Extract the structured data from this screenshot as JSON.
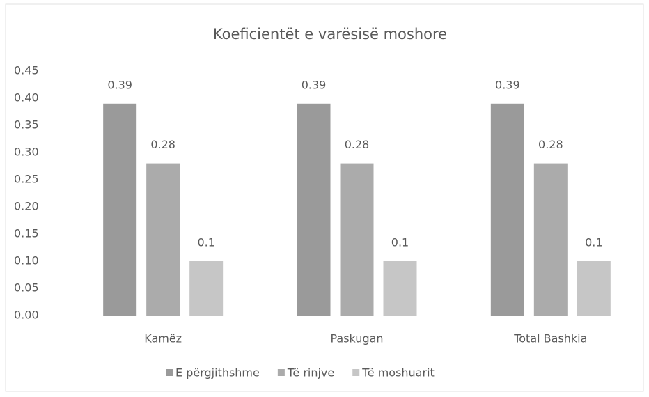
{
  "chart_data": {
    "type": "bar",
    "title": "Koeficientët e varësisë moshore",
    "categories": [
      "Kamëz",
      "Paskugan",
      "Total Bashkia"
    ],
    "series": [
      {
        "name": "E përgjithshme",
        "color": "#9a9a9a",
        "values": [
          0.39,
          0.39,
          0.39
        ]
      },
      {
        "name": "Të rinjve",
        "color": "#ababab",
        "values": [
          0.28,
          0.28,
          0.28
        ]
      },
      {
        "name": "Të moshuarit",
        "color": "#c6c6c6",
        "values": [
          0.1,
          0.1,
          0.1
        ]
      }
    ],
    "ylim": [
      0,
      0.45
    ],
    "yticks": [
      {
        "value": 0,
        "label": "0.00"
      },
      {
        "value": 0.05,
        "label": "0.05"
      },
      {
        "value": 0.1,
        "label": "0.10"
      },
      {
        "value": 0.15,
        "label": "0.15"
      },
      {
        "value": 0.2,
        "label": "0.20"
      },
      {
        "value": 0.25,
        "label": "0.25"
      },
      {
        "value": 0.3,
        "label": "0.30"
      },
      {
        "value": 0.35,
        "label": "0.35"
      },
      {
        "value": 0.4,
        "label": "0.40"
      },
      {
        "value": 0.45,
        "label": "0.45"
      }
    ],
    "grid": false,
    "legend": "bottom"
  }
}
